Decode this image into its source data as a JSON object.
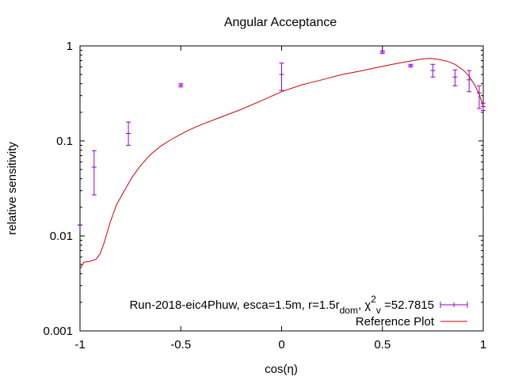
{
  "chart_data": {
    "type": "scatter",
    "title": "Angular Acceptance",
    "xlabel": "cos(η)",
    "ylabel": "relative sensitivity",
    "xlim": [
      -1,
      1
    ],
    "ylim": [
      0.001,
      1
    ],
    "yscale": "log",
    "grid": false,
    "legend_position": "bottom-right",
    "x_ticks": [
      {
        "value": -1,
        "label": "-1"
      },
      {
        "value": -0.5,
        "label": "-0.5"
      },
      {
        "value": 0,
        "label": "0"
      },
      {
        "value": 0.5,
        "label": "0.5"
      },
      {
        "value": 1,
        "label": "1"
      }
    ],
    "y_ticks": [
      {
        "value": 0.001,
        "label": "0.001"
      },
      {
        "value": 0.01,
        "label": "0.01"
      },
      {
        "value": 0.1,
        "label": "0.1"
      },
      {
        "value": 1,
        "label": "1"
      }
    ],
    "legend": {
      "data_label_prefix": "Run-2018-eic4Phuw, esca=1.5m, r=1.5r",
      "data_label_sub1": "dom",
      "data_label_mid": ", χ",
      "data_label_sup": "2",
      "data_label_sub2": "v",
      "data_label_suffix": " =52.7815",
      "reference_label": "Reference Plot"
    },
    "series": [
      {
        "kind": "errorbar",
        "color": "#9400d3",
        "x": [
          -1.0,
          -0.93,
          -0.76,
          -0.5,
          0.0,
          0.5,
          0.64,
          0.75,
          0.86,
          0.93,
          0.98,
          1.0
        ],
        "y": [
          0.013,
          0.053,
          0.12,
          0.385,
          0.5,
          0.86,
          0.62,
          0.55,
          0.47,
          0.44,
          0.32,
          0.23
        ],
        "ylow": [
          0.013,
          0.027,
          0.09,
          0.37,
          0.34,
          0.83,
          0.6,
          0.47,
          0.38,
          0.33,
          0.22,
          0.21
        ],
        "yhigh": [
          0.013,
          0.079,
          0.158,
          0.4,
          0.66,
          0.89,
          0.64,
          0.64,
          0.56,
          0.55,
          0.38,
          0.25
        ]
      },
      {
        "kind": "line",
        "color": "#cc0000",
        "x": [
          -1.0,
          -0.98,
          -0.95,
          -0.92,
          -0.9,
          -0.88,
          -0.85,
          -0.82,
          -0.78,
          -0.74,
          -0.7,
          -0.65,
          -0.6,
          -0.55,
          -0.5,
          -0.45,
          -0.4,
          -0.3,
          -0.2,
          -0.1,
          0.0,
          0.1,
          0.2,
          0.3,
          0.4,
          0.5,
          0.55,
          0.6,
          0.65,
          0.7,
          0.74,
          0.78,
          0.82,
          0.86,
          0.9,
          0.93,
          0.96,
          0.98,
          1.0
        ],
        "y": [
          0.0045,
          0.0053,
          0.0054,
          0.0057,
          0.0065,
          0.0085,
          0.014,
          0.021,
          0.03,
          0.042,
          0.055,
          0.072,
          0.088,
          0.103,
          0.118,
          0.133,
          0.148,
          0.178,
          0.215,
          0.265,
          0.33,
          0.39,
          0.44,
          0.5,
          0.55,
          0.61,
          0.64,
          0.67,
          0.7,
          0.73,
          0.74,
          0.72,
          0.69,
          0.64,
          0.56,
          0.48,
          0.38,
          0.31,
          0.23
        ]
      }
    ]
  }
}
